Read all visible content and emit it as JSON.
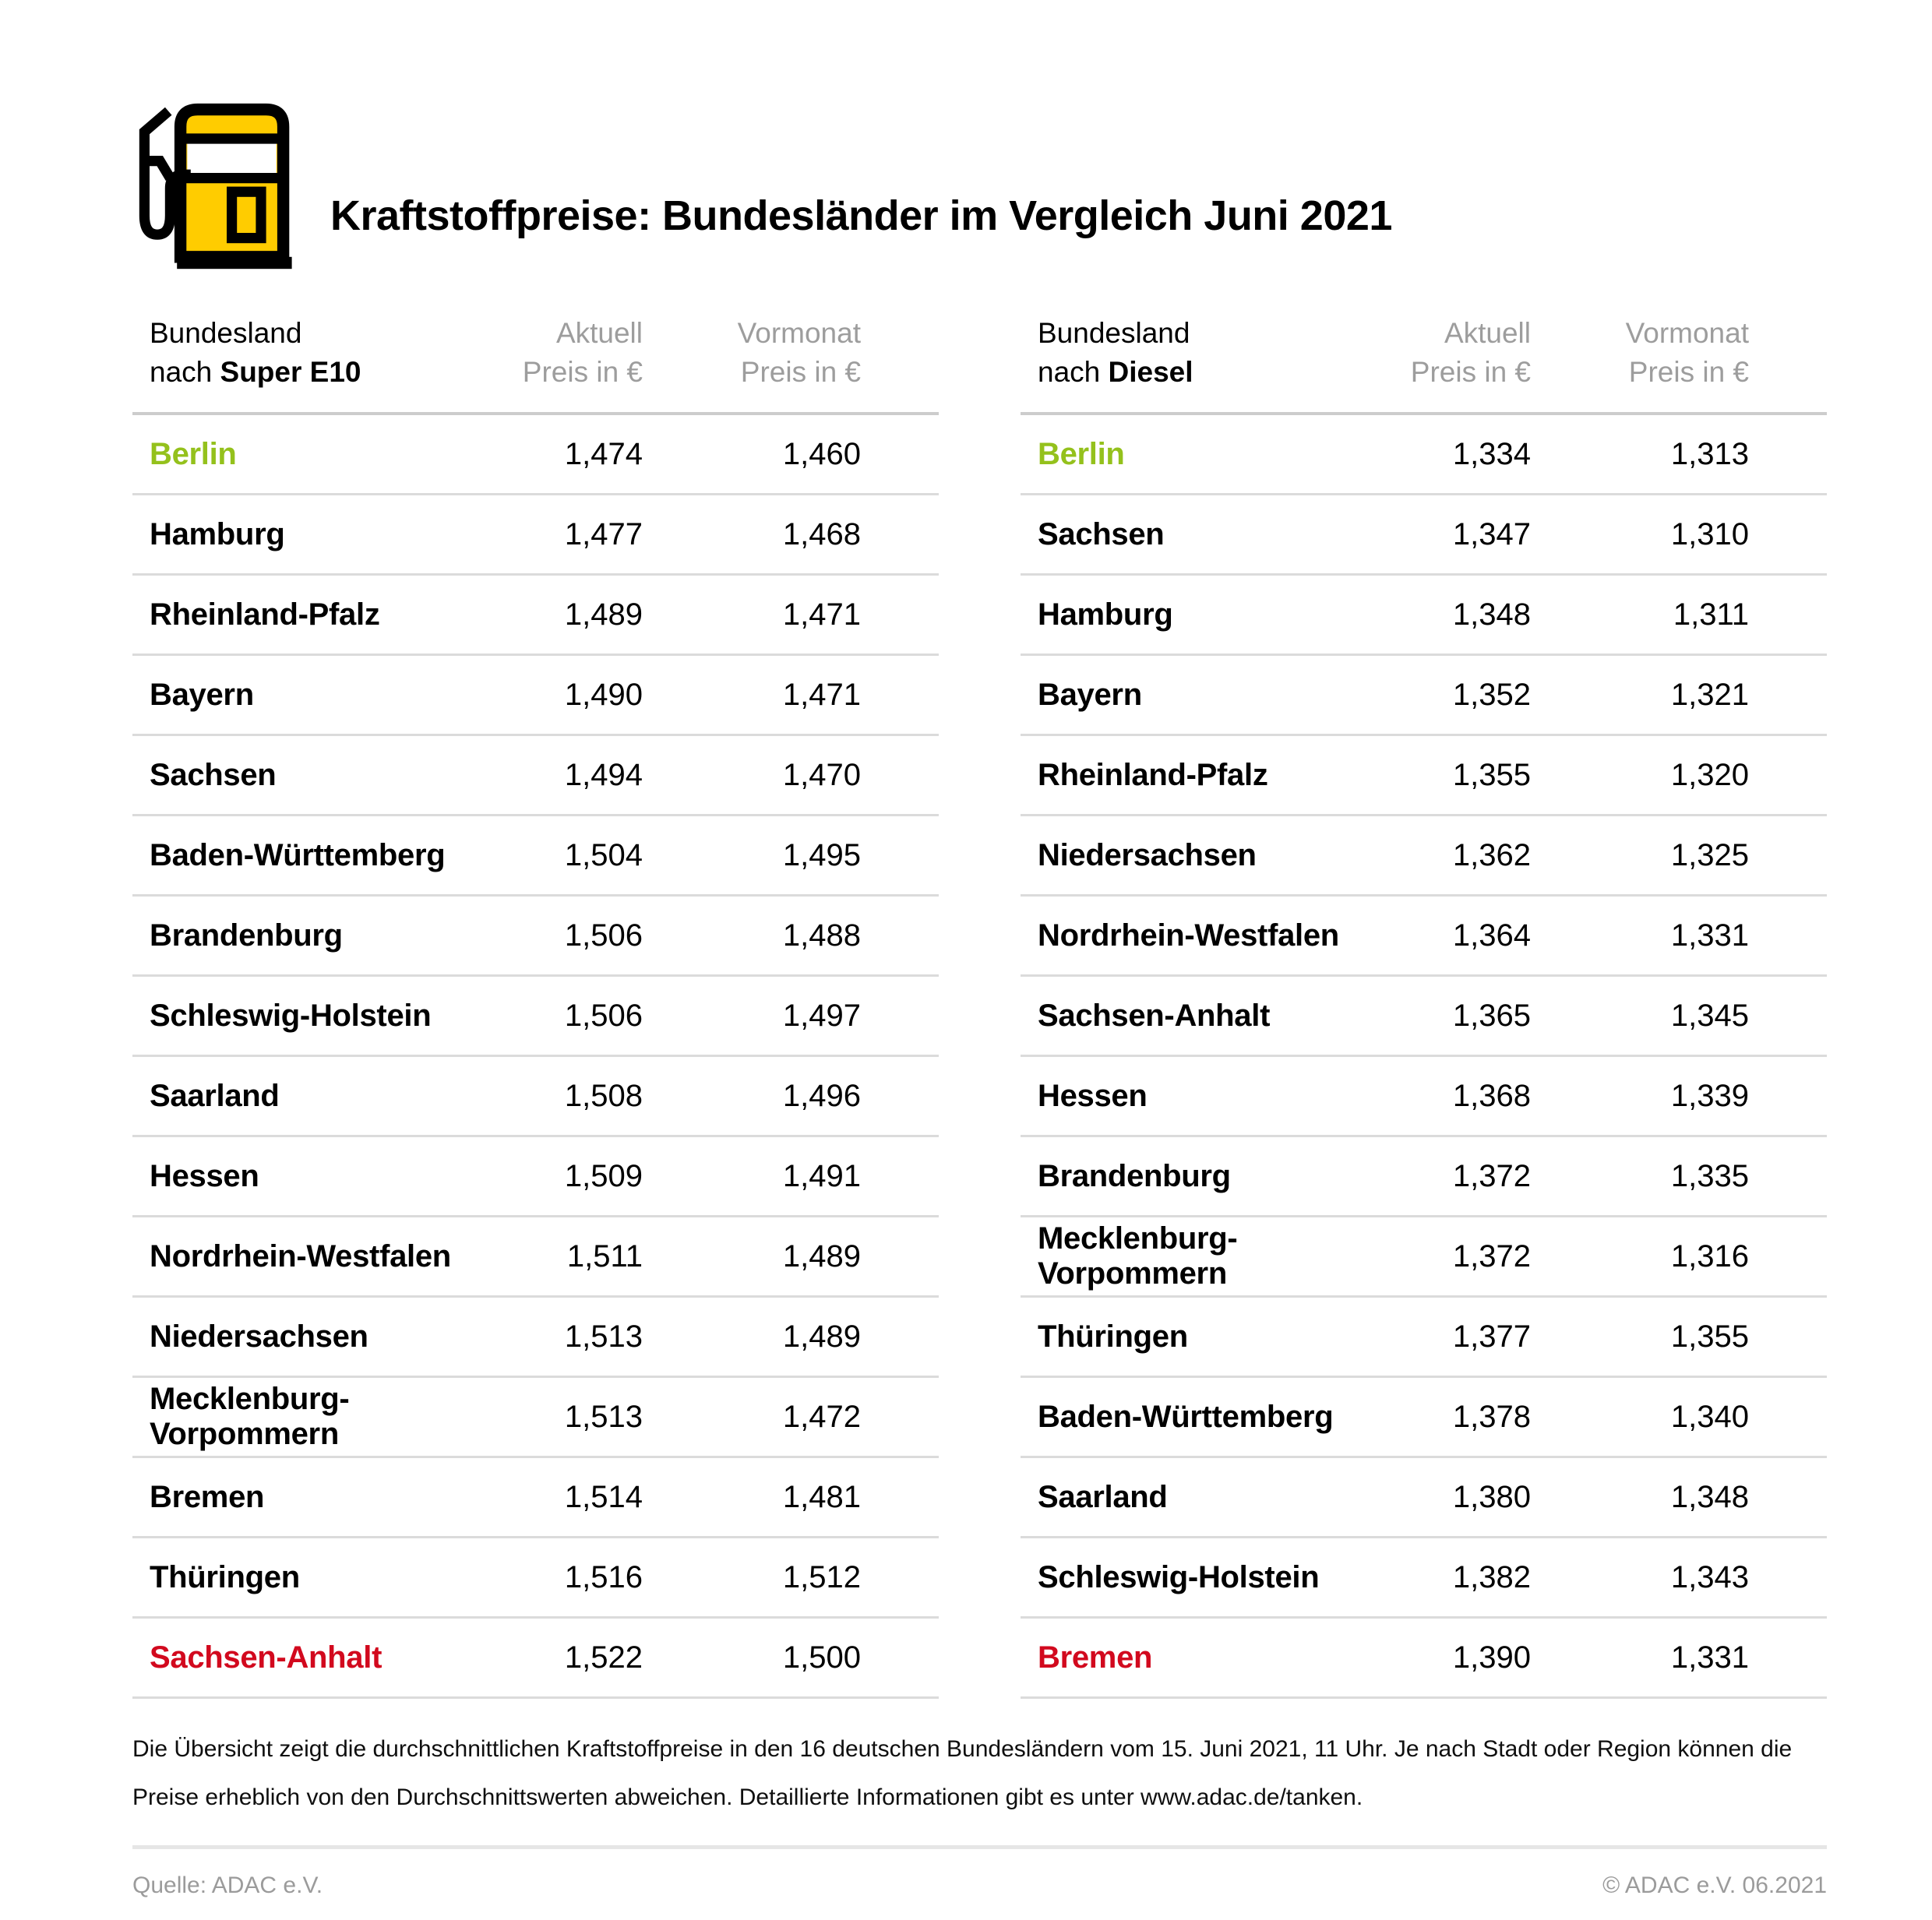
{
  "title": "Kraftstoffpreise: Bundesländer im Vergleich Juni 2021",
  "icon": {
    "name": "fuel-pump-icon",
    "yellow": "#FFCC00",
    "outline": "#000000"
  },
  "colors": {
    "highlight_green": "#94c11c",
    "highlight_red": "#d2091e",
    "header_gray": "#9d9d9d"
  },
  "tables": [
    {
      "header": {
        "group_line1": "Bundesland",
        "group_prefix": "nach",
        "fuel": "Super E10",
        "aktuell_line1": "Aktuell",
        "aktuell_line2": "Preis in €",
        "vormonat_line1": "Vormonat",
        "vormonat_line2": "Preis in €"
      },
      "rows": [
        [
          "Berlin",
          "1,474",
          "1,460",
          "green"
        ],
        [
          "Hamburg",
          "1,477",
          "1,468",
          ""
        ],
        [
          "Rheinland-Pfalz",
          "1,489",
          "1,471",
          ""
        ],
        [
          "Bayern",
          "1,490",
          "1,471",
          ""
        ],
        [
          "Sachsen",
          "1,494",
          "1,470",
          ""
        ],
        [
          "Baden-Württemberg",
          "1,504",
          "1,495",
          ""
        ],
        [
          "Brandenburg",
          "1,506",
          "1,488",
          ""
        ],
        [
          "Schleswig-Holstein",
          "1,506",
          "1,497",
          ""
        ],
        [
          "Saarland",
          "1,508",
          "1,496",
          ""
        ],
        [
          "Hessen",
          "1,509",
          "1,491",
          ""
        ],
        [
          "Nordrhein-Westfalen",
          "1,511",
          "1,489",
          ""
        ],
        [
          "Niedersachsen",
          "1,513",
          "1,489",
          ""
        ],
        [
          "Mecklenburg-Vorpommern",
          "1,513",
          "1,472",
          ""
        ],
        [
          "Bremen",
          "1,514",
          "1,481",
          ""
        ],
        [
          "Thüringen",
          "1,516",
          "1,512",
          ""
        ],
        [
          "Sachsen-Anhalt",
          "1,522",
          "1,500",
          "red"
        ]
      ]
    },
    {
      "header": {
        "group_line1": "Bundesland",
        "group_prefix": "nach",
        "fuel": "Diesel",
        "aktuell_line1": "Aktuell",
        "aktuell_line2": "Preis in €",
        "vormonat_line1": "Vormonat",
        "vormonat_line2": "Preis in €"
      },
      "rows": [
        [
          "Berlin",
          "1,334",
          "1,313",
          "green"
        ],
        [
          "Sachsen",
          "1,347",
          "1,310",
          ""
        ],
        [
          "Hamburg",
          "1,348",
          "1,311",
          ""
        ],
        [
          "Bayern",
          "1,352",
          "1,321",
          ""
        ],
        [
          "Rheinland-Pfalz",
          "1,355",
          "1,320",
          ""
        ],
        [
          "Niedersachsen",
          "1,362",
          "1,325",
          ""
        ],
        [
          "Nordrhein-Westfalen",
          "1,364",
          "1,331",
          ""
        ],
        [
          "Sachsen-Anhalt",
          "1,365",
          "1,345",
          ""
        ],
        [
          "Hessen",
          "1,368",
          "1,339",
          ""
        ],
        [
          "Brandenburg",
          "1,372",
          "1,335",
          ""
        ],
        [
          "Mecklenburg-Vorpommern",
          "1,372",
          "1,316",
          ""
        ],
        [
          "Thüringen",
          "1,377",
          "1,355",
          ""
        ],
        [
          "Baden-Württemberg",
          "1,378",
          "1,340",
          ""
        ],
        [
          "Saarland",
          "1,380",
          "1,348",
          ""
        ],
        [
          "Schleswig-Holstein",
          "1,382",
          "1,343",
          ""
        ],
        [
          "Bremen",
          "1,390",
          "1,331",
          "red"
        ]
      ]
    }
  ],
  "footnote": {
    "line1": "Die Übersicht zeigt die durchschnittlichen Kraftstoffpreise in den 16 deutschen Bundesländern vom 15. Juni 2021, 11 Uhr. Je nach Stadt oder Region können die",
    "line2": "Preise erheblich von den Durchschnittswerten abweichen. Detaillierte Informationen gibt es unter www.adac.de/tanken."
  },
  "footer": {
    "source": "Quelle: ADAC e.V.",
    "copyright": "© ADAC e.V. 06.2021"
  },
  "chart_data": [
    {
      "type": "table",
      "title": "Bundesland nach Super E10",
      "columns": [
        "Bundesland",
        "Aktuell Preis in €",
        "Vormonat Preis in €"
      ],
      "rows": [
        [
          "Berlin",
          1.474,
          1.46
        ],
        [
          "Hamburg",
          1.477,
          1.468
        ],
        [
          "Rheinland-Pfalz",
          1.489,
          1.471
        ],
        [
          "Bayern",
          1.49,
          1.471
        ],
        [
          "Sachsen",
          1.494,
          1.47
        ],
        [
          "Baden-Württemberg",
          1.504,
          1.495
        ],
        [
          "Brandenburg",
          1.506,
          1.488
        ],
        [
          "Schleswig-Holstein",
          1.506,
          1.497
        ],
        [
          "Saarland",
          1.508,
          1.496
        ],
        [
          "Hessen",
          1.509,
          1.491
        ],
        [
          "Nordrhein-Westfalen",
          1.511,
          1.489
        ],
        [
          "Niedersachsen",
          1.513,
          1.489
        ],
        [
          "Mecklenburg-Vorpommern",
          1.513,
          1.472
        ],
        [
          "Bremen",
          1.514,
          1.481
        ],
        [
          "Thüringen",
          1.516,
          1.512
        ],
        [
          "Sachsen-Anhalt",
          1.522,
          1.5
        ]
      ],
      "highlights": {
        "cheapest_green": "Berlin",
        "most_expensive_red": "Sachsen-Anhalt"
      }
    },
    {
      "type": "table",
      "title": "Bundesland nach Diesel",
      "columns": [
        "Bundesland",
        "Aktuell Preis in €",
        "Vormonat Preis in €"
      ],
      "rows": [
        [
          "Berlin",
          1.334,
          1.313
        ],
        [
          "Sachsen",
          1.347,
          1.31
        ],
        [
          "Hamburg",
          1.348,
          1.311
        ],
        [
          "Bayern",
          1.352,
          1.321
        ],
        [
          "Rheinland-Pfalz",
          1.355,
          1.32
        ],
        [
          "Niedersachsen",
          1.362,
          1.325
        ],
        [
          "Nordrhein-Westfalen",
          1.364,
          1.331
        ],
        [
          "Sachsen-Anhalt",
          1.365,
          1.345
        ],
        [
          "Hessen",
          1.368,
          1.339
        ],
        [
          "Brandenburg",
          1.372,
          1.335
        ],
        [
          "Mecklenburg-Vorpommern",
          1.372,
          1.316
        ],
        [
          "Thüringen",
          1.377,
          1.355
        ],
        [
          "Baden-Württemberg",
          1.378,
          1.34
        ],
        [
          "Saarland",
          1.38,
          1.348
        ],
        [
          "Schleswig-Holstein",
          1.382,
          1.343
        ],
        [
          "Bremen",
          1.39,
          1.331
        ]
      ],
      "highlights": {
        "cheapest_green": "Berlin",
        "most_expensive_red": "Bremen"
      }
    }
  ]
}
